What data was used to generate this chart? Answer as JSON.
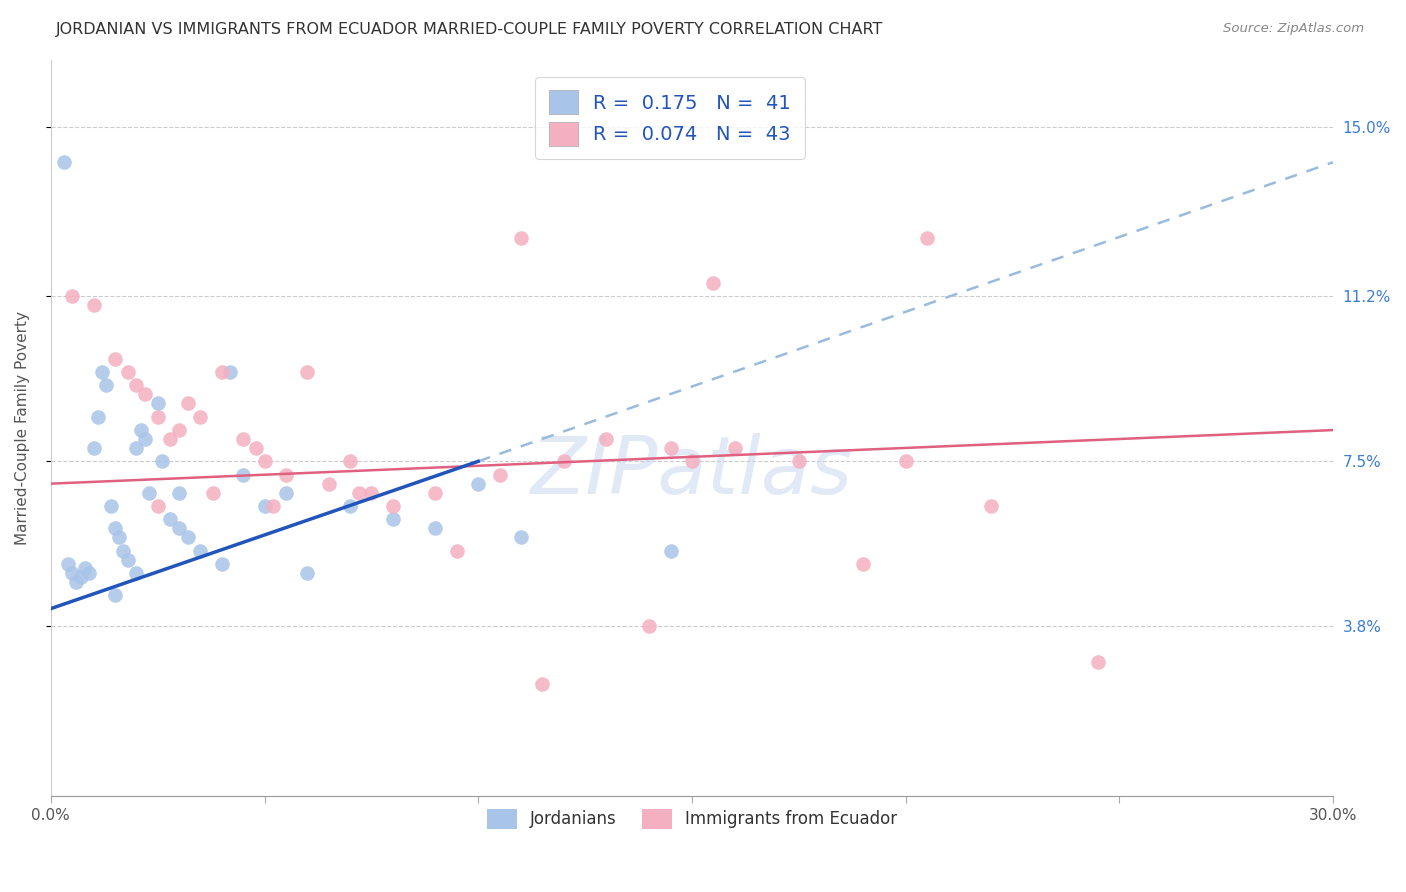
{
  "title": "JORDANIAN VS IMMIGRANTS FROM ECUADOR MARRIED-COUPLE FAMILY POVERTY CORRELATION CHART",
  "source": "Source: ZipAtlas.com",
  "ylabel": "Married-Couple Family Poverty",
  "x_min": 0.0,
  "x_max": 30.0,
  "y_min": 0.0,
  "y_max": 16.5,
  "y_ticks_right": [
    3.8,
    7.5,
    11.2,
    15.0
  ],
  "series1_label": "Jordanians",
  "series2_label": "Immigrants from Ecuador",
  "series1_R": 0.175,
  "series1_N": 41,
  "series2_R": 0.074,
  "series2_N": 43,
  "series1_color": "#a8c4e8",
  "series2_color": "#f4afc0",
  "trend1_color": "#2255bb",
  "trend2_color": "#e06080",
  "dashed_color": "#99bbdd",
  "background_color": "#ffffff",
  "watermark": "ZIPatlas",
  "legend_R_color": "#2255bb",
  "legend_text_color": "#333333",
  "right_axis_color": "#3b7dd8",
  "s1x": [
    0.3,
    0.4,
    0.5,
    0.6,
    0.7,
    0.8,
    0.9,
    1.0,
    1.1,
    1.2,
    1.3,
    1.4,
    1.5,
    1.6,
    1.7,
    1.8,
    2.0,
    2.0,
    2.1,
    2.2,
    2.3,
    2.5,
    2.6,
    2.8,
    3.0,
    3.0,
    3.2,
    3.5,
    4.0,
    4.2,
    4.5,
    5.0,
    5.5,
    6.0,
    7.0,
    8.0,
    9.0,
    10.0,
    11.0,
    1.5,
    14.5
  ],
  "s1y": [
    14.2,
    5.2,
    5.0,
    4.8,
    4.9,
    5.1,
    5.0,
    7.8,
    8.5,
    9.5,
    9.2,
    6.5,
    6.0,
    5.8,
    5.5,
    5.3,
    7.8,
    5.0,
    8.2,
    8.0,
    6.8,
    8.8,
    7.5,
    6.2,
    6.0,
    6.8,
    5.8,
    5.5,
    5.2,
    9.5,
    7.2,
    6.5,
    6.8,
    5.0,
    6.5,
    6.2,
    6.0,
    7.0,
    5.8,
    4.5,
    5.5
  ],
  "s2x": [
    0.5,
    1.0,
    1.5,
    1.8,
    2.0,
    2.2,
    2.5,
    2.8,
    3.0,
    3.2,
    3.5,
    4.0,
    4.5,
    4.8,
    5.0,
    5.5,
    6.0,
    6.5,
    7.0,
    7.5,
    8.0,
    9.0,
    10.5,
    11.0,
    12.0,
    13.0,
    14.5,
    15.0,
    16.0,
    17.5,
    19.0,
    20.0,
    22.0,
    24.5,
    2.5,
    3.8,
    5.2,
    7.2,
    9.5,
    11.5,
    14.0,
    20.5,
    15.5
  ],
  "s2y": [
    11.2,
    11.0,
    9.8,
    9.5,
    9.2,
    9.0,
    8.5,
    8.0,
    8.2,
    8.8,
    8.5,
    9.5,
    8.0,
    7.8,
    7.5,
    7.2,
    9.5,
    7.0,
    7.5,
    6.8,
    6.5,
    6.8,
    7.2,
    12.5,
    7.5,
    8.0,
    7.8,
    7.5,
    7.8,
    7.5,
    5.2,
    7.5,
    6.5,
    3.0,
    6.5,
    6.8,
    6.5,
    6.8,
    5.5,
    2.5,
    3.8,
    12.5,
    11.5
  ],
  "trend1_x0": 0.0,
  "trend1_y0": 4.2,
  "trend1_x1": 10.0,
  "trend1_y1": 7.5,
  "trend2_x0": 0.0,
  "trend2_y0": 7.0,
  "trend2_x1": 30.0,
  "trend2_y1": 8.2,
  "dash_x0": 10.0,
  "dash_y0": 7.5,
  "dash_x1": 30.0,
  "dash_y1": 14.2
}
